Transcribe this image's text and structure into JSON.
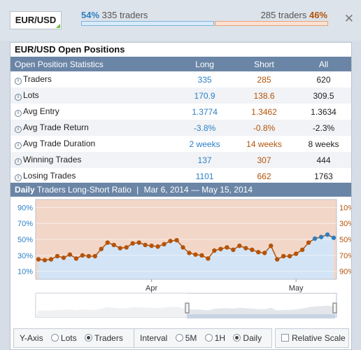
{
  "header": {
    "pair": "EUR/USD",
    "long_pct": "54%",
    "long_text": "335 traders",
    "short_text": "285 traders",
    "short_pct": "46%"
  },
  "panel": {
    "title": "EUR/USD Open Positions",
    "columns": [
      "Open Position Statistics",
      "Long",
      "Short",
      "All"
    ],
    "rows": [
      {
        "label": "Traders",
        "long": "335",
        "short": "285",
        "all": "620"
      },
      {
        "label": "Lots",
        "long": "170.9",
        "short": "138.6",
        "all": "309.5"
      },
      {
        "label": "Avg Entry",
        "long": "1.3774",
        "short": "1.3462",
        "all": "1.3634"
      },
      {
        "label": "Avg Trade Return",
        "long": "-3.8%",
        "short": "-0.8%",
        "all": "-2.3%"
      },
      {
        "label": "Avg Trade Duration",
        "long": "2 weeks",
        "short": "14 weeks",
        "all": "8 weeks"
      },
      {
        "label": "Winning Trades",
        "long": "137",
        "short": "307",
        "all": "444"
      },
      {
        "label": "Losing Trades",
        "long": "1101",
        "short": "662",
        "all": "1763"
      }
    ]
  },
  "chart_section": {
    "period": "Daily",
    "title": "Traders Long-Short Ratio",
    "range": "Mar 6, 2014 — May 15, 2014"
  },
  "chart_data": {
    "type": "line",
    "title": "Traders Long-Short Ratio",
    "y_left_ticks": [
      "90%",
      "70%",
      "50%",
      "30%",
      "10%"
    ],
    "y_right_ticks": [
      "10%",
      "30%",
      "50%",
      "70%",
      "90%"
    ],
    "x_ticks": [
      "Apr",
      "May"
    ],
    "ylim": [
      0,
      100
    ],
    "series": [
      {
        "values": [
          25,
          24,
          25,
          29,
          27,
          31,
          26,
          30,
          29,
          29,
          38,
          46,
          43,
          39,
          40,
          45,
          46,
          43,
          42,
          41,
          44,
          48,
          49,
          40,
          33,
          31,
          30,
          26,
          36,
          38,
          40,
          37,
          42,
          39,
          37,
          34,
          33,
          42,
          25,
          29,
          29,
          32,
          37,
          46,
          51,
          53,
          56,
          52
        ]
      }
    ],
    "long_color": "#2c7fc3",
    "short_color": "#b45309"
  },
  "controls": {
    "yaxis_label": "Y-Axis",
    "yaxis_options": [
      "Lots",
      "Traders"
    ],
    "yaxis_selected": "Traders",
    "interval_label": "Interval",
    "interval_options": [
      "5M",
      "1H",
      "Daily"
    ],
    "interval_selected": "Daily",
    "relative_scale": "Relative Scale"
  }
}
